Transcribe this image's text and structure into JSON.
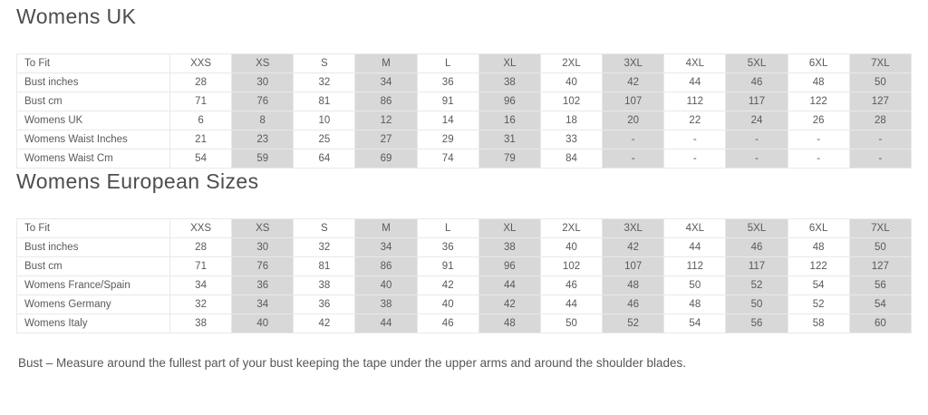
{
  "page": {
    "background": "#ffffff",
    "text_color": "#58595b",
    "shaded_column_color": "#d8d8d8",
    "border_color": "#e9e9e9",
    "shaded_columns": [
      1,
      3,
      5,
      7,
      9,
      11
    ]
  },
  "sections": [
    {
      "title": "Womens UK",
      "table": {
        "header_label": "To Fit",
        "columns": [
          "XXS",
          "XS",
          "S",
          "M",
          "L",
          "XL",
          "2XL",
          "3XL",
          "4XL",
          "5XL",
          "6XL",
          "7XL"
        ],
        "rows": [
          {
            "label": "Bust inches",
            "values": [
              "28",
              "30",
              "32",
              "34",
              "36",
              "38",
              "40",
              "42",
              "44",
              "46",
              "48",
              "50"
            ]
          },
          {
            "label": "Bust cm",
            "values": [
              "71",
              "76",
              "81",
              "86",
              "91",
              "96",
              "102",
              "107",
              "112",
              "117",
              "122",
              "127"
            ]
          },
          {
            "label": "Womens UK",
            "values": [
              "6",
              "8",
              "10",
              "12",
              "14",
              "16",
              "18",
              "20",
              "22",
              "24",
              "26",
              "28"
            ]
          },
          {
            "label": "Womens Waist Inches",
            "values": [
              "21",
              "23",
              "25",
              "27",
              "29",
              "31",
              "33",
              "-",
              "-",
              "-",
              "-",
              "-"
            ]
          },
          {
            "label": "Womens Waist Cm",
            "values": [
              "54",
              "59",
              "64",
              "69",
              "74",
              "79",
              "84",
              "-",
              "-",
              "-",
              "-",
              "-"
            ]
          }
        ]
      }
    },
    {
      "title": "Womens European Sizes",
      "table": {
        "header_label": "To Fit",
        "columns": [
          "XXS",
          "XS",
          "S",
          "M",
          "L",
          "XL",
          "2XL",
          "3XL",
          "4XL",
          "5XL",
          "6XL",
          "7XL"
        ],
        "rows": [
          {
            "label": "Bust inches",
            "values": [
              "28",
              "30",
              "32",
              "34",
              "36",
              "38",
              "40",
              "42",
              "44",
              "46",
              "48",
              "50"
            ]
          },
          {
            "label": "Bust cm",
            "values": [
              "71",
              "76",
              "81",
              "86",
              "91",
              "96",
              "102",
              "107",
              "112",
              "117",
              "122",
              "127"
            ]
          },
          {
            "label": "Womens France/Spain",
            "values": [
              "34",
              "36",
              "38",
              "40",
              "42",
              "44",
              "46",
              "48",
              "50",
              "52",
              "54",
              "56"
            ]
          },
          {
            "label": "Womens Germany",
            "values": [
              "32",
              "34",
              "36",
              "38",
              "40",
              "42",
              "44",
              "46",
              "48",
              "50",
              "52",
              "54"
            ]
          },
          {
            "label": "Womens Italy",
            "values": [
              "38",
              "40",
              "42",
              "44",
              "46",
              "48",
              "50",
              "52",
              "54",
              "56",
              "58",
              "60"
            ]
          }
        ]
      }
    }
  ],
  "footer_note": "Bust – Measure around the fullest part of your bust keeping the tape under the upper arms and around the shoulder blades."
}
